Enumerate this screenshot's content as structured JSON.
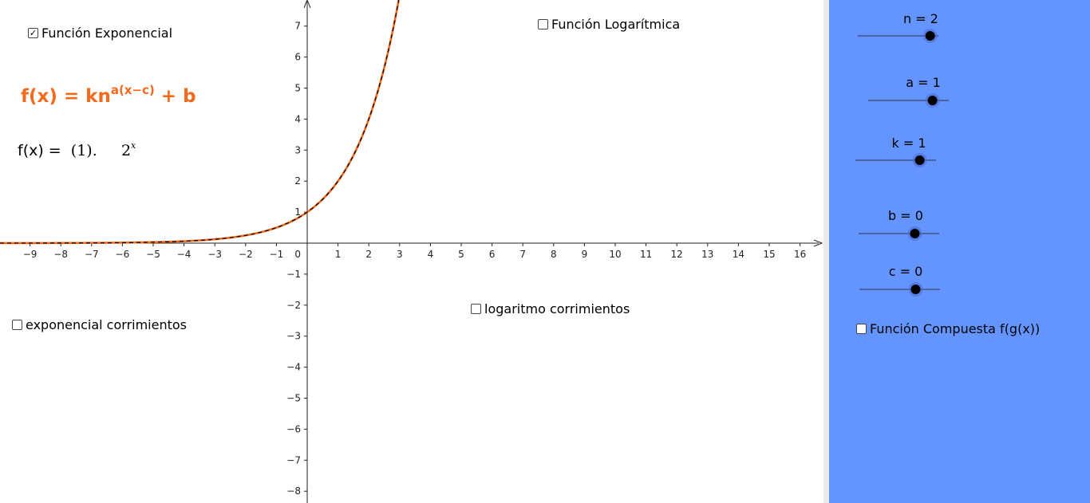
{
  "checkboxes": {
    "exponencial": {
      "label": "Función Exponencial",
      "checked": true
    },
    "logaritmica": {
      "label": "Función Logarítmica",
      "checked": false
    },
    "exp_corrimientos": {
      "label": "exponencial corrimientos",
      "checked": false
    },
    "log_corrimientos": {
      "label": "logaritmo corrimientos",
      "checked": false
    },
    "compuesta": {
      "label": "Función Compuesta f(g(x))",
      "checked": false
    }
  },
  "formula": {
    "general_lhs": "f(x) = kn",
    "general_exponent": "a(x−c)",
    "general_tail": " + b",
    "evaluated_lhs": "f(x) = ",
    "evaluated_coef": " (1).     2",
    "evaluated_exponent": "x"
  },
  "sliders": [
    {
      "name": "n",
      "label": "n = 2",
      "value": 2,
      "min": -5,
      "max": 5
    },
    {
      "name": "a",
      "label": "a = 1",
      "value": 1,
      "min": -5,
      "max": 5
    },
    {
      "name": "k",
      "label": "k = 1",
      "value": 1,
      "min": -5,
      "max": 5
    },
    {
      "name": "b",
      "label": "b = 0",
      "value": 0,
      "min": -5,
      "max": 5
    },
    {
      "name": "c",
      "label": "c = 0",
      "value": 0,
      "min": -5,
      "max": 5
    }
  ],
  "graph": {
    "x_min": -10,
    "x_max": 17,
    "y_min": -8.5,
    "y_max": 7.8,
    "x_ticks": [
      "−9",
      "−8",
      "−7",
      "−6",
      "−5",
      "−4",
      "−3",
      "−2",
      "−1",
      "1",
      "2",
      "3",
      "4",
      "5",
      "6",
      "7",
      "8",
      "9",
      "10",
      "11",
      "12",
      "13",
      "14",
      "15",
      "16"
    ],
    "x_tick_values": [
      -9,
      -8,
      -7,
      -6,
      -5,
      -4,
      -3,
      -2,
      -1,
      1,
      2,
      3,
      4,
      5,
      6,
      7,
      8,
      9,
      10,
      11,
      12,
      13,
      14,
      15,
      16
    ],
    "y_ticks": [
      "7",
      "6",
      "5",
      "4",
      "3",
      "2",
      "1",
      "−1",
      "−2",
      "−3",
      "−4",
      "−5",
      "−6",
      "−7",
      "−8"
    ],
    "y_tick_values": [
      7,
      6,
      5,
      4,
      3,
      2,
      1,
      -1,
      -2,
      -3,
      -4,
      -5,
      -6,
      -7,
      -8
    ],
    "origin_label": "0",
    "curve_color": "#f26a1b",
    "curve_dash_color": "#000000",
    "function": {
      "k": 1,
      "n": 2,
      "a": 1,
      "c": 0,
      "b": 0
    }
  },
  "colors": {
    "panel": "#6495ff",
    "accent": "#f26a1b"
  }
}
